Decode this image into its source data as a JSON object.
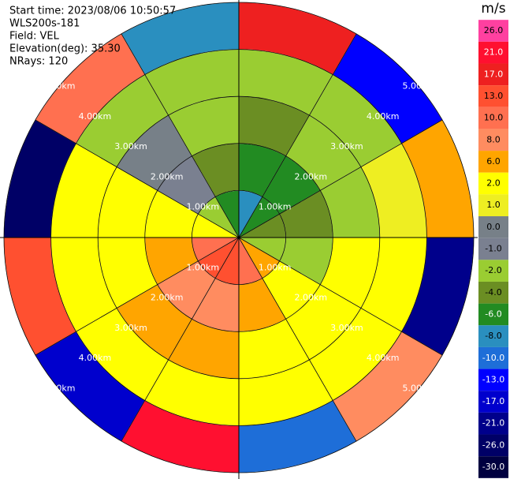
{
  "chart_data": {
    "type": "ppi",
    "info": [
      "Start time: 2023/08/06 10:50:57",
      "WLS200s-181",
      "Field: VEL",
      "Elevation(deg): 35.30",
      "NRays: 120"
    ],
    "range_labels": [
      "1.00km",
      "2.00km",
      "3.00km",
      "4.00km",
      "5.00km"
    ],
    "colorbar": {
      "title": "m/s",
      "ticks": [
        {
          "value": 26,
          "label": "26.0"
        },
        {
          "value": 21,
          "label": "21.0"
        },
        {
          "value": 17,
          "label": "17.0"
        },
        {
          "value": 13,
          "label": "13.0"
        },
        {
          "value": 10,
          "label": "10.0"
        },
        {
          "value": 8,
          "label": "8.0"
        },
        {
          "value": 6,
          "label": "6.0"
        },
        {
          "value": 2,
          "label": "2.0"
        },
        {
          "value": 1,
          "label": "1.0"
        },
        {
          "value": 0,
          "label": "0.0"
        },
        {
          "value": -1,
          "label": "-1.0"
        },
        {
          "value": -2,
          "label": "-2.0"
        },
        {
          "value": -4,
          "label": "-4.0"
        },
        {
          "value": -6,
          "label": "-6.0"
        },
        {
          "value": -8,
          "label": "-8.0"
        },
        {
          "value": -10,
          "label": "-10.0"
        },
        {
          "value": -13,
          "label": "-13.0"
        },
        {
          "value": -17,
          "label": "-17.0"
        },
        {
          "value": -21,
          "label": "-21.0"
        },
        {
          "value": -26,
          "label": "-26.0"
        },
        {
          "value": -30,
          "label": "-30.0"
        }
      ],
      "colors": [
        "#ff40a0",
        "#ff1030",
        "#ee2020",
        "#ff5030",
        "#ff7050",
        "#ff8c60",
        "#ffa500",
        "#ffff00",
        "#eeee22",
        "#778088",
        "#7a8090",
        "#9acd32",
        "#6b8e23",
        "#228b22",
        "#2a8fbf",
        "#1e6ed8",
        "#0000ff",
        "#0000cd",
        "#00008b",
        "#000066",
        "#000040"
      ]
    },
    "field": [
      [
        -8,
        -6,
        -4,
        -2,
        6,
        10,
        13,
        13,
        10,
        2,
        -2,
        -6
      ],
      [
        -6,
        -6,
        -4,
        -2,
        2,
        6,
        8,
        8,
        6,
        2,
        -1,
        -4
      ],
      [
        -4,
        -2,
        -2,
        2,
        2,
        3,
        6,
        6,
        3,
        2,
        0,
        -2
      ],
      [
        -2,
        -2,
        1,
        2,
        2,
        2,
        3,
        3,
        2,
        2,
        -2,
        -2
      ],
      [
        17,
        -13,
        6,
        -21,
        8,
        -10,
        21,
        -17,
        13,
        -26,
        10,
        -8
      ]
    ]
  }
}
